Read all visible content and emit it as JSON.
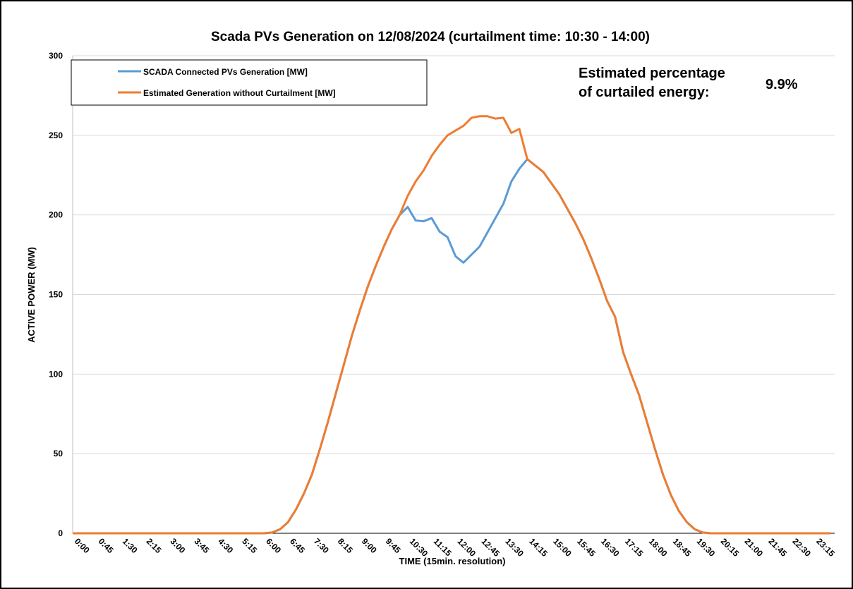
{
  "chart_data": {
    "type": "line",
    "title": "Scada PVs Generation on 12/08/2024 (curtailment time: 10:30 - 14:00)",
    "x_label": "TIME (15min. resolution)",
    "y_label": "ACTIVE POWER (MW)",
    "annotation": [
      "Estimated percentage",
      "of curtailed energy:"
    ],
    "annotation_value": "9.9%",
    "categories": [
      "0:00",
      null,
      null,
      "0:45",
      null,
      null,
      "1:30",
      null,
      null,
      "2:15",
      null,
      null,
      "3:00",
      null,
      null,
      "3:45",
      null,
      null,
      "4:30",
      null,
      null,
      "5:15",
      null,
      null,
      "6:00",
      null,
      null,
      "6:45",
      null,
      null,
      "7:30",
      null,
      null,
      "8:15",
      null,
      null,
      "9:00",
      null,
      null,
      "9:45",
      null,
      null,
      "10:30",
      null,
      null,
      "11:15",
      null,
      null,
      "12:00",
      null,
      null,
      "12:45",
      null,
      null,
      "13:30",
      null,
      null,
      "14:15",
      null,
      null,
      "15:00",
      null,
      null,
      "15:45",
      null,
      null,
      "16:30",
      null,
      null,
      "17:15",
      null,
      null,
      "18:00",
      null,
      null,
      "18:45",
      null,
      null,
      "19:30",
      null,
      null,
      "20:15",
      null,
      null,
      "21:00",
      null,
      null,
      "21:45",
      null,
      null,
      "22:30",
      null,
      null,
      "23:15",
      null,
      null
    ],
    "series": [
      {
        "name": "SCADA Connected PVs Generation [MW]",
        "color": "#5b9bd5",
        "values": [
          0,
          0,
          0,
          0,
          0,
          0,
          0,
          0,
          0,
          0,
          0,
          0,
          0,
          0,
          0,
          0,
          0,
          0,
          0,
          0,
          0,
          0,
          0,
          0,
          0,
          0.5,
          2.5,
          7,
          15,
          25,
          37,
          53,
          70,
          88,
          106,
          124,
          140,
          155,
          168,
          180,
          191,
          200,
          205,
          196.5,
          196,
          198,
          189.5,
          186,
          174,
          170,
          175,
          180,
          189,
          198,
          207,
          221,
          229,
          235,
          231,
          227,
          220,
          213,
          204,
          195,
          185,
          173,
          160,
          146,
          136,
          114,
          100,
          87,
          70,
          53,
          37,
          24,
          14,
          7,
          2.5,
          0.5,
          0,
          0,
          0,
          0,
          0,
          0,
          0,
          0,
          0,
          0,
          0,
          0,
          0,
          0,
          0,
          0
        ]
      },
      {
        "name": "Estimated Generation without Curtailment [MW]",
        "color": "#ed7d31",
        "values": [
          0,
          0,
          0,
          0,
          0,
          0,
          0,
          0,
          0,
          0,
          0,
          0,
          0,
          0,
          0,
          0,
          0,
          0,
          0,
          0,
          0,
          0,
          0,
          0,
          0,
          0.5,
          2.5,
          7,
          15,
          25,
          37,
          53,
          70,
          88,
          106,
          124,
          140,
          155,
          168,
          180,
          191,
          200,
          212,
          221,
          228,
          237,
          244,
          250,
          253,
          256,
          261,
          262,
          262,
          260.5,
          261,
          251.5,
          254,
          235,
          231,
          227,
          220,
          213,
          204,
          195,
          185,
          173,
          160,
          146,
          136,
          114,
          100,
          87,
          70,
          53,
          37,
          24,
          14,
          7,
          2.5,
          0.5,
          0,
          0,
          0,
          0,
          0,
          0,
          0,
          0,
          0,
          0,
          0,
          0,
          0,
          0,
          0,
          0
        ]
      }
    ],
    "ylim": [
      0,
      300
    ],
    "yticks": [
      0,
      50,
      100,
      150,
      200,
      250,
      300
    ],
    "grid": true
  }
}
